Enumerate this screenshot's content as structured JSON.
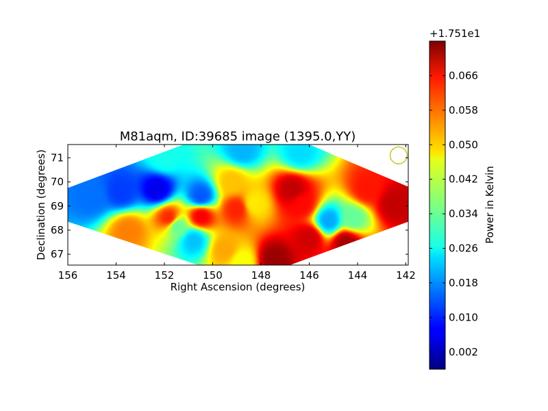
{
  "chart_data": {
    "type": "heatmap",
    "title": "M81aqm, ID:39685 image (1395.0,YY)",
    "xlabel": "Right Ascension (degrees)",
    "ylabel": "Declination (degrees)",
    "xlim": [
      156.0,
      141.9
    ],
    "ylim": [
      66.55,
      71.55
    ],
    "x_ticks": [
      "156",
      "154",
      "152",
      "150",
      "148",
      "146",
      "144",
      "142"
    ],
    "y_ticks": [
      "67",
      "68",
      "69",
      "70",
      "71"
    ],
    "footprint_corners": [
      {
        "ra": 151.2,
        "dec": 71.55
      },
      {
        "ra": 146.0,
        "dec": 71.55
      },
      {
        "ra": 141.9,
        "dec": 69.8
      },
      {
        "ra": 141.9,
        "dec": 68.35
      },
      {
        "ra": 146.8,
        "dec": 66.55
      },
      {
        "ra": 150.6,
        "dec": 66.55
      },
      {
        "ra": 156.0,
        "dec": 68.35
      },
      {
        "ra": 156.0,
        "dec": 69.75
      }
    ],
    "beam_marker": {
      "ra": 142.3,
      "dec": 71.1,
      "radius_deg": 0.35,
      "color": "#bfbf00"
    },
    "colormap": "jet",
    "field_features": [
      {
        "ra": 152.3,
        "dec": 69.7,
        "value": 0.006
      },
      {
        "ra": 155.0,
        "dec": 69.4,
        "value": 0.016
      },
      {
        "ra": 153.8,
        "dec": 69.6,
        "value": 0.012
      },
      {
        "ra": 150.5,
        "dec": 69.4,
        "value": 0.014
      },
      {
        "ra": 148.8,
        "dec": 71.3,
        "value": 0.021
      },
      {
        "ra": 146.4,
        "dec": 71.2,
        "value": 0.024
      },
      {
        "ra": 152.0,
        "dec": 71.0,
        "value": 0.028
      },
      {
        "ra": 146.7,
        "dec": 69.7,
        "value": 0.069
      },
      {
        "ra": 146.3,
        "dec": 69.1,
        "value": 0.064
      },
      {
        "ra": 142.5,
        "dec": 69.1,
        "value": 0.069
      },
      {
        "ra": 143.6,
        "dec": 69.7,
        "value": 0.063
      },
      {
        "ra": 147.5,
        "dec": 66.8,
        "value": 0.072
      },
      {
        "ra": 146.0,
        "dec": 67.7,
        "value": 0.068
      },
      {
        "ra": 144.5,
        "dec": 67.5,
        "value": 0.071
      },
      {
        "ra": 145.2,
        "dec": 68.4,
        "value": 0.02
      },
      {
        "ra": 144.2,
        "dec": 68.5,
        "value": 0.034
      },
      {
        "ra": 150.8,
        "dec": 67.6,
        "value": 0.022
      },
      {
        "ra": 151.5,
        "dec": 68.2,
        "value": 0.034
      },
      {
        "ra": 151.8,
        "dec": 68.5,
        "value": 0.062
      },
      {
        "ra": 150.5,
        "dec": 68.6,
        "value": 0.065
      },
      {
        "ra": 149.0,
        "dec": 68.9,
        "value": 0.062
      },
      {
        "ra": 149.2,
        "dec": 70.0,
        "value": 0.05
      },
      {
        "ra": 148.3,
        "dec": 69.1,
        "value": 0.047
      },
      {
        "ra": 153.5,
        "dec": 68.0,
        "value": 0.055
      },
      {
        "ra": 149.5,
        "dec": 67.2,
        "value": 0.052
      },
      {
        "ra": 148.8,
        "dec": 66.7,
        "value": 0.045
      }
    ],
    "colorbar": {
      "label": "Power in Kelvin",
      "offset_text": "+1.751e1",
      "range": [
        -0.002,
        0.074
      ],
      "ticks": [
        {
          "value": 0.002,
          "label": "0.002"
        },
        {
          "value": 0.01,
          "label": "0.010"
        },
        {
          "value": 0.018,
          "label": "0.018"
        },
        {
          "value": 0.026,
          "label": "0.026"
        },
        {
          "value": 0.034,
          "label": "0.034"
        },
        {
          "value": 0.042,
          "label": "0.042"
        },
        {
          "value": 0.05,
          "label": "0.050"
        },
        {
          "value": 0.058,
          "label": "0.058"
        },
        {
          "value": 0.066,
          "label": "0.066"
        }
      ]
    }
  }
}
